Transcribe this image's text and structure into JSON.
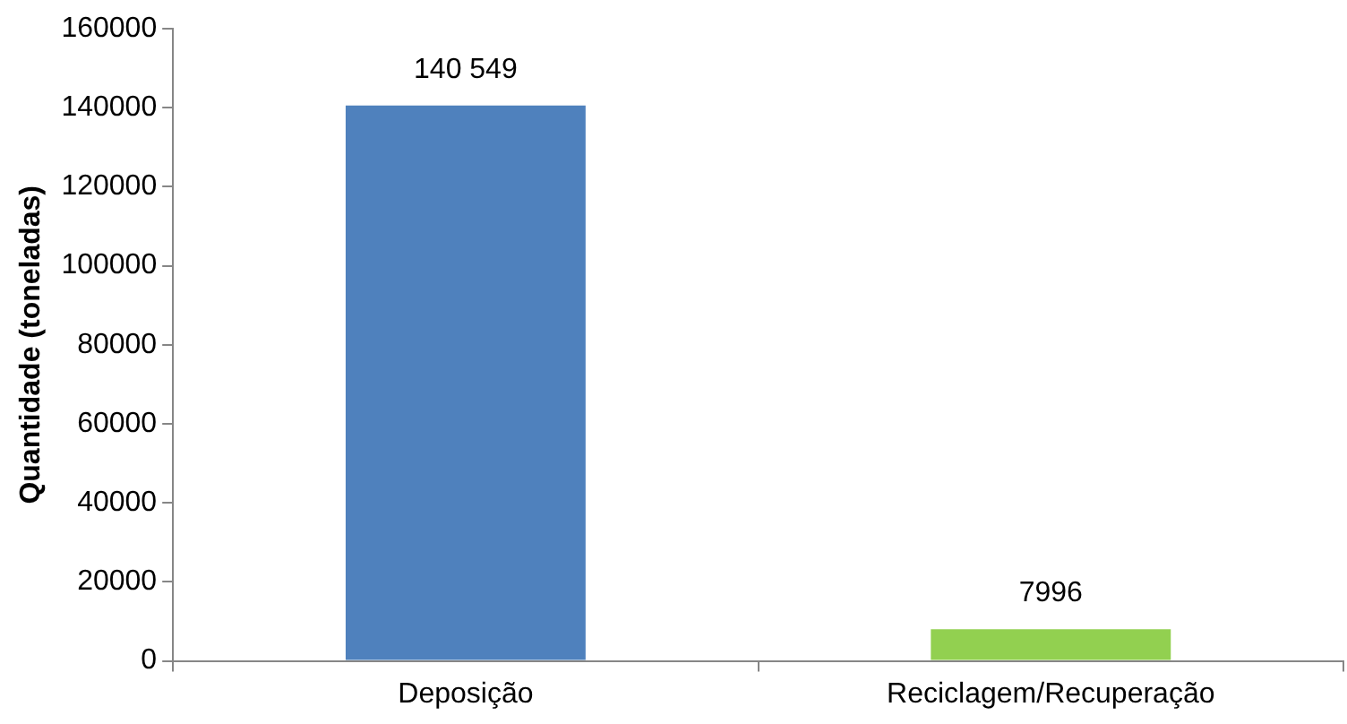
{
  "chart_data": {
    "type": "bar",
    "ylabel": "Quantidade (toneladas)",
    "categories": [
      "Deposição",
      "Reciclagem/Recuperação"
    ],
    "values": [
      140549,
      7996
    ],
    "value_labels": [
      "140 549",
      "7996"
    ],
    "colors": [
      "#4f81bd",
      "#92d050"
    ],
    "ylim": [
      0,
      160000
    ],
    "yticks": [
      0,
      20000,
      40000,
      60000,
      80000,
      100000,
      120000,
      140000,
      160000
    ],
    "grid": false,
    "legend": false
  }
}
